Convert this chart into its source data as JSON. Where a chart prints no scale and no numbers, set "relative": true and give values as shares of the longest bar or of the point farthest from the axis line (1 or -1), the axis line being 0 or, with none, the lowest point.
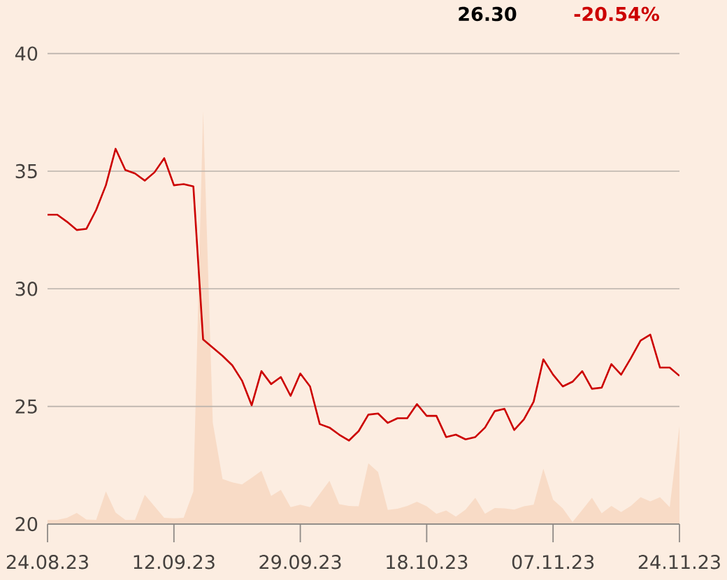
{
  "chart_data": [
    {
      "type": "line",
      "annotations": [
        "26.30",
        "-20.54%"
      ],
      "categories": [
        "24.08.23",
        null,
        null,
        null,
        null,
        null,
        null,
        null,
        null,
        null,
        null,
        null,
        null,
        "12.09.23",
        null,
        null,
        null,
        null,
        null,
        null,
        null,
        null,
        null,
        null,
        null,
        null,
        "29.09.23",
        null,
        null,
        null,
        null,
        null,
        null,
        null,
        null,
        null,
        null,
        null,
        null,
        "18.10.23",
        null,
        null,
        null,
        null,
        null,
        null,
        null,
        null,
        null,
        null,
        null,
        null,
        "07.11.23",
        null,
        null,
        null,
        null,
        null,
        null,
        null,
        null,
        null,
        null,
        null,
        null,
        "24.11.23"
      ],
      "ylim": [
        20,
        40
      ],
      "yticks": [
        20,
        25,
        30,
        35,
        40
      ],
      "grid": "y",
      "color": "#cc0000",
      "values": [
        33.15,
        33.15,
        32.85,
        32.5,
        32.55,
        33.35,
        34.4,
        35.95,
        35.05,
        34.9,
        34.6,
        34.95,
        35.55,
        34.4,
        34.45,
        34.35,
        27.85,
        27.5,
        27.15,
        26.75,
        26.1,
        25.05,
        26.5,
        25.95,
        26.25,
        25.45,
        26.4,
        25.85,
        24.25,
        24.1,
        23.8,
        23.55,
        23.95,
        24.65,
        24.7,
        24.3,
        24.5,
        24.5,
        25.1,
        24.6,
        24.6,
        23.7,
        23.8,
        23.6,
        23.7,
        24.1,
        24.8,
        24.9,
        24.0,
        24.45,
        25.2,
        27.0,
        26.35,
        25.85,
        26.05,
        26.5,
        25.75,
        25.8,
        26.8,
        26.35,
        27.05,
        27.8,
        28.05,
        26.65,
        26.65,
        26.3
      ]
    },
    {
      "type": "area",
      "relative": true,
      "tick_labels": false,
      "categories": [
        "24.08.23",
        null,
        null,
        null,
        null,
        null,
        null,
        null,
        null,
        null,
        null,
        null,
        null,
        "12.09.23",
        null,
        null,
        null,
        null,
        null,
        null,
        null,
        null,
        null,
        null,
        null,
        null,
        "29.09.23",
        null,
        null,
        null,
        null,
        null,
        null,
        null,
        null,
        null,
        null,
        null,
        null,
        "18.10.23",
        null,
        null,
        null,
        null,
        null,
        null,
        null,
        null,
        null,
        null,
        null,
        null,
        "07.11.23",
        null,
        null,
        null,
        null,
        null,
        null,
        null,
        null,
        null,
        null,
        null,
        null,
        "24.11.23"
      ],
      "color": "#f8dbc6",
      "values": [
        0.01,
        0.01,
        0.015,
        0.027,
        0.011,
        0.01,
        0.079,
        0.028,
        0.01,
        0.01,
        0.071,
        0.043,
        0.015,
        0.014,
        0.015,
        0.079,
        1,
        0.245,
        0.109,
        0.101,
        0.096,
        0.112,
        0.129,
        0.068,
        0.083,
        0.041,
        0.047,
        0.041,
        0.073,
        0.105,
        0.048,
        0.044,
        0.043,
        0.147,
        0.126,
        0.034,
        0.037,
        0.044,
        0.054,
        0.043,
        0.025,
        0.033,
        0.018,
        0.035,
        0.064,
        0.025,
        0.039,
        0.038,
        0.035,
        0.043,
        0.047,
        0.134,
        0.059,
        0.038,
        0.005,
        0.034,
        0.064,
        0.026,
        0.044,
        0.029,
        0.044,
        0.065,
        0.055,
        0.065,
        0.041,
        0.237
      ]
    }
  ]
}
